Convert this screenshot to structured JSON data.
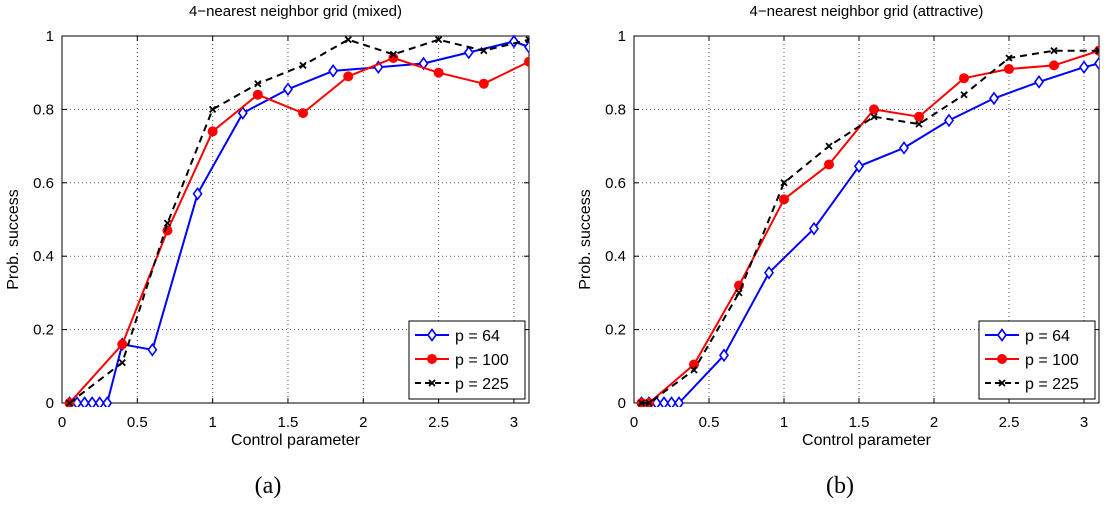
{
  "chart_data": [
    {
      "type": "line",
      "title": "4−nearest neighbor grid (mixed)",
      "xlabel": "Control parameter",
      "ylabel": "Prob. success",
      "caption": "(a)",
      "xlim": [
        0,
        3.1
      ],
      "ylim": [
        0,
        1
      ],
      "xticks": [
        "0",
        "0.5",
        "1",
        "1.5",
        "2",
        "2.5",
        "3"
      ],
      "yticks": [
        "0",
        "0.2",
        "0.4",
        "0.6",
        "0.8",
        "1"
      ],
      "grid": true,
      "legend": "bottom-right",
      "series": [
        {
          "name": "p = 64",
          "color": "#0000ff",
          "marker": "diamond",
          "dash": "solid",
          "x": [
            0.05,
            0.1,
            0.15,
            0.2,
            0.25,
            0.3,
            0.4,
            0.6,
            0.9,
            1.2,
            1.5,
            1.8,
            2.1,
            2.4,
            2.7,
            3.0,
            3.1
          ],
          "y": [
            0,
            0,
            0,
            0,
            0,
            0,
            0.16,
            0.145,
            0.57,
            0.79,
            0.855,
            0.905,
            0.915,
            0.925,
            0.955,
            0.985,
            0.97
          ]
        },
        {
          "name": "p = 100",
          "color": "#ff0000",
          "marker": "circle",
          "dash": "solid",
          "x": [
            0.05,
            0.4,
            0.7,
            1.0,
            1.3,
            1.6,
            1.9,
            2.2,
            2.5,
            2.8,
            3.1
          ],
          "y": [
            0,
            0.16,
            0.47,
            0.74,
            0.84,
            0.79,
            0.89,
            0.94,
            0.9,
            0.87,
            0.93
          ]
        },
        {
          "name": "p = 225",
          "color": "#000000",
          "marker": "x",
          "dash": "dashed",
          "x": [
            0.05,
            0.4,
            0.7,
            1.0,
            1.3,
            1.6,
            1.9,
            2.2,
            2.5,
            2.8,
            3.1
          ],
          "y": [
            0,
            0.11,
            0.49,
            0.8,
            0.87,
            0.92,
            0.99,
            0.95,
            0.99,
            0.96,
            0.99
          ]
        }
      ]
    },
    {
      "type": "line",
      "title": "4−nearest neighbor grid (attractive)",
      "xlabel": "Control parameter",
      "ylabel": "Prob. success",
      "caption": "(b)",
      "xlim": [
        0,
        3.1
      ],
      "ylim": [
        0,
        1
      ],
      "xticks": [
        "0",
        "0.5",
        "1",
        "1.5",
        "2",
        "2.5",
        "3"
      ],
      "yticks": [
        "0",
        "0.2",
        "0.4",
        "0.6",
        "0.8",
        "1"
      ],
      "grid": true,
      "legend": "bottom-right",
      "series": [
        {
          "name": "p = 64",
          "color": "#0000ff",
          "marker": "diamond",
          "dash": "solid",
          "x": [
            0.05,
            0.1,
            0.15,
            0.2,
            0.25,
            0.3,
            0.6,
            0.9,
            1.2,
            1.5,
            1.8,
            2.1,
            2.4,
            2.7,
            3.0,
            3.1
          ],
          "y": [
            0,
            0,
            0,
            0,
            0,
            0,
            0.13,
            0.355,
            0.475,
            0.645,
            0.695,
            0.77,
            0.83,
            0.875,
            0.915,
            0.925
          ]
        },
        {
          "name": "p = 100",
          "color": "#ff0000",
          "marker": "circle",
          "dash": "solid",
          "x": [
            0.05,
            0.1,
            0.4,
            0.7,
            1.0,
            1.3,
            1.6,
            1.9,
            2.2,
            2.5,
            2.8,
            3.1
          ],
          "y": [
            0,
            0,
            0.105,
            0.32,
            0.555,
            0.65,
            0.8,
            0.78,
            0.885,
            0.91,
            0.92,
            0.96
          ]
        },
        {
          "name": "p = 225",
          "color": "#000000",
          "marker": "x",
          "dash": "dashed",
          "x": [
            0.05,
            0.1,
            0.4,
            0.7,
            1.0,
            1.3,
            1.6,
            1.9,
            2.2,
            2.5,
            2.8,
            3.1
          ],
          "y": [
            0,
            0,
            0.09,
            0.3,
            0.6,
            0.7,
            0.78,
            0.76,
            0.84,
            0.94,
            0.96,
            0.96
          ]
        }
      ]
    }
  ]
}
